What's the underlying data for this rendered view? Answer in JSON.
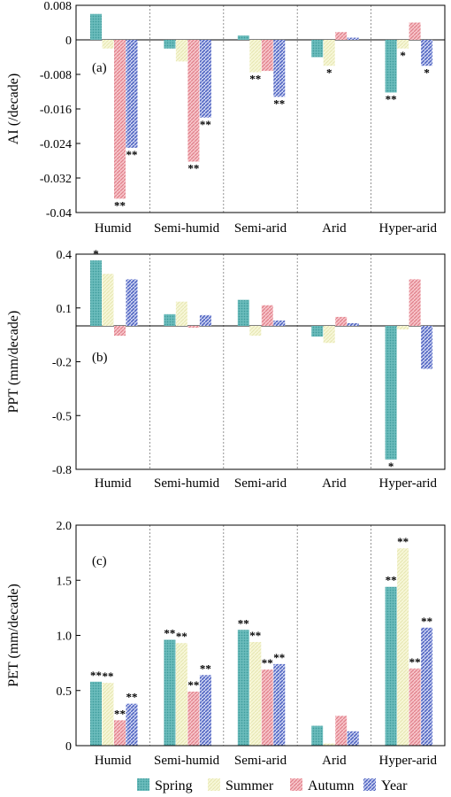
{
  "series_styles": [
    {
      "name": "Spring",
      "color": "#5fb4b4",
      "pattern": "pat-spring"
    },
    {
      "name": "Summer",
      "color": "#f2f2c6",
      "pattern": "pat-summer"
    },
    {
      "name": "Autumn",
      "color": "#f2a5ad",
      "pattern": "pat-autumn"
    },
    {
      "name": "Year",
      "color": "#6d7fcb",
      "pattern": "pat-year"
    }
  ],
  "legend": {
    "items": [
      "Spring",
      "Summer",
      "Autumn",
      "Year"
    ]
  },
  "chart_data": [
    {
      "type": "bar",
      "panel_label": "(a)",
      "ylabel": "AI (/decade)",
      "ylim": [
        -0.04,
        0.008
      ],
      "yticks": [
        0.008,
        0,
        -0.008,
        -0.016,
        -0.024,
        -0.032,
        -0.04
      ],
      "ytick_labels": [
        "0.008",
        "0",
        "-0.008",
        "-0.016",
        "-0.024",
        "-0.032",
        "-0.04"
      ],
      "categories": [
        "Humid",
        "Semi-humid",
        "Semi-arid",
        "Arid",
        "Hyper-arid"
      ],
      "series": [
        {
          "name": "Spring",
          "values": [
            0.006,
            -0.002,
            0.001,
            -0.004,
            -0.0122
          ]
        },
        {
          "name": "Summer",
          "values": [
            -0.002,
            -0.005,
            -0.0075,
            -0.006,
            -0.002
          ]
        },
        {
          "name": "Autumn",
          "values": [
            -0.0368,
            -0.0282,
            -0.0072,
            0.0018,
            0.004
          ]
        },
        {
          "name": "Year",
          "values": [
            -0.025,
            -0.018,
            -0.0132,
            0.0005,
            -0.006
          ]
        }
      ],
      "significance": [
        [
          "",
          "",
          "",
          "",
          "**"
        ],
        [
          "",
          "",
          "**",
          "*",
          "*"
        ],
        [
          "**",
          "**",
          "",
          "",
          ""
        ],
        [
          "**",
          "**",
          "**",
          "",
          "*"
        ]
      ],
      "grid": false,
      "category_separators": true
    },
    {
      "type": "bar",
      "panel_label": "(b)",
      "ylabel": "PPT (mm/decade)",
      "ylim": [
        -0.8,
        0.4
      ],
      "yticks": [
        0.4,
        0.1,
        -0.2,
        -0.5,
        -0.8
      ],
      "ytick_labels": [
        "0.4",
        "0.1",
        "-0.2",
        "-0.5",
        "-0.8"
      ],
      "categories": [
        "Humid",
        "Semi-humid",
        "Semi-arid",
        "Arid",
        "Hyper-arid"
      ],
      "series": [
        {
          "name": "Spring",
          "values": [
            0.365,
            0.065,
            0.145,
            -0.06,
            -0.745
          ]
        },
        {
          "name": "Summer",
          "values": [
            0.29,
            0.135,
            -0.055,
            -0.095,
            -0.02
          ]
        },
        {
          "name": "Autumn",
          "values": [
            -0.055,
            -0.01,
            0.115,
            0.05,
            0.26
          ]
        },
        {
          "name": "Year",
          "values": [
            0.26,
            0.06,
            0.03,
            0.015,
            -0.24
          ]
        }
      ],
      "significance": [
        [
          "*",
          "",
          "",
          "",
          "*"
        ],
        [
          "",
          "",
          "",
          "",
          ""
        ],
        [
          "",
          "",
          "",
          "",
          ""
        ],
        [
          "",
          "",
          "",
          "",
          ""
        ]
      ],
      "grid": false,
      "category_separators": true
    },
    {
      "type": "bar",
      "panel_label": "(c)",
      "ylabel": "PET (mm/decade)",
      "ylim": [
        0,
        2.0
      ],
      "yticks": [
        0,
        0.5,
        1.0,
        1.5,
        2.0
      ],
      "ytick_labels": [
        "0",
        "0.5",
        "1.0",
        "1.5",
        "2.0"
      ],
      "categories": [
        "Humid",
        "Semi-humid",
        "Semi-arid",
        "Arid",
        "Hyper-arid"
      ],
      "series": [
        {
          "name": "Spring",
          "values": [
            0.58,
            0.96,
            1.05,
            0.18,
            1.44
          ]
        },
        {
          "name": "Summer",
          "values": [
            0.57,
            0.93,
            0.94,
            0.02,
            1.79
          ]
        },
        {
          "name": "Autumn",
          "values": [
            0.23,
            0.49,
            0.69,
            0.27,
            0.7
          ]
        },
        {
          "name": "Year",
          "values": [
            0.38,
            0.64,
            0.74,
            0.13,
            1.07
          ]
        }
      ],
      "significance": [
        [
          "**",
          "**",
          "**",
          "",
          "**"
        ],
        [
          "**",
          "**",
          "**",
          "",
          "**"
        ],
        [
          "**",
          "**",
          "**",
          "",
          "**"
        ],
        [
          "**",
          "**",
          "**",
          "",
          "**"
        ]
      ],
      "grid": false,
      "category_separators": true
    }
  ]
}
